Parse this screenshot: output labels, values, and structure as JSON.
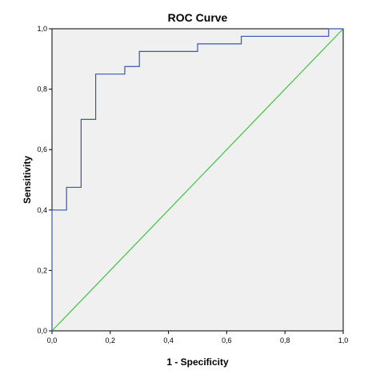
{
  "chart_data": {
    "type": "line",
    "title": "ROC Curve",
    "xlabel": "1 - Specificity",
    "ylabel": "Sensitivity",
    "xlim": [
      0.0,
      1.0
    ],
    "ylim": [
      0.0,
      1.0
    ],
    "x_ticks": [
      "0,0",
      "0,2",
      "0,4",
      "0,6",
      "0,8",
      "1,0"
    ],
    "y_ticks": [
      "0,0",
      "0,2",
      "0,4",
      "0,6",
      "0,8",
      "1,0"
    ],
    "grid": false,
    "background_color": "#f0f0f0",
    "series": [
      {
        "color": "#3a56b4",
        "step": true,
        "x": [
          0.0,
          0.0,
          0.05,
          0.05,
          0.1,
          0.1,
          0.15,
          0.15,
          0.25,
          0.25,
          0.3,
          0.3,
          0.5,
          0.5,
          0.65,
          0.65,
          0.95,
          0.95,
          1.0
        ],
        "y": [
          0.0,
          0.4,
          0.4,
          0.475,
          0.475,
          0.7,
          0.7,
          0.85,
          0.85,
          0.875,
          0.875,
          0.925,
          0.925,
          0.95,
          0.95,
          0.975,
          0.975,
          1.0,
          1.0
        ]
      },
      {
        "color": "#3cc43c",
        "step": false,
        "x": [
          0.0,
          1.0
        ],
        "y": [
          0.0,
          1.0
        ]
      }
    ]
  }
}
